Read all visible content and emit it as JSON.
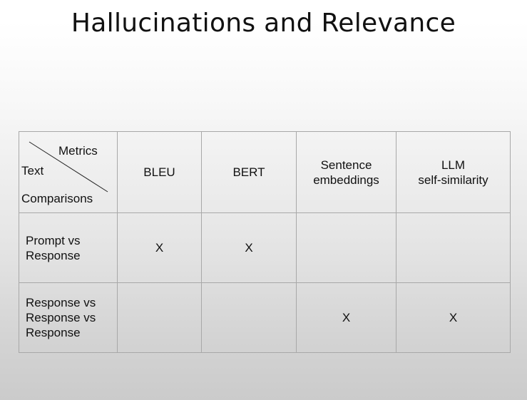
{
  "slide": {
    "title": "Hallucinations and Relevance"
  },
  "table": {
    "corner": {
      "top_right": "Metrics",
      "left": "Text",
      "bottom_left": "Comparisons"
    },
    "columns": [
      {
        "line1": "BLEU",
        "line2": ""
      },
      {
        "line1": "BERT",
        "line2": ""
      },
      {
        "line1": "Sentence",
        "line2": "embeddings"
      },
      {
        "line1": "LLM",
        "line2": "self-similarity"
      }
    ],
    "rows": [
      {
        "label_lines": [
          "Prompt vs",
          "Response"
        ],
        "cells": [
          "X",
          "X",
          "",
          ""
        ]
      },
      {
        "label_lines": [
          "Response vs",
          "Response vs",
          "Response"
        ],
        "cells": [
          "",
          "",
          "X",
          "X"
        ]
      }
    ]
  }
}
